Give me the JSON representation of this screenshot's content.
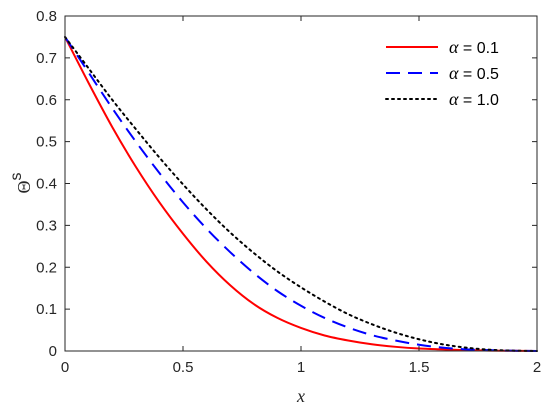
{
  "chart_data": {
    "type": "line",
    "title": "",
    "xlabel": "x",
    "ylabel": "Θ",
    "ylabel_superscript": "s",
    "xlim": [
      0,
      2
    ],
    "ylim": [
      0,
      0.8
    ],
    "xticks": [
      0,
      0.5,
      1,
      1.5,
      2
    ],
    "xtick_labels": [
      "0",
      "0.5",
      "1",
      "1.5",
      "2"
    ],
    "yticks": [
      0,
      0.1,
      0.2,
      0.3,
      0.4,
      0.5,
      0.6,
      0.7,
      0.8
    ],
    "ytick_labels": [
      "0",
      "0.1",
      "0.2",
      "0.3",
      "0.4",
      "0.5",
      "0.6",
      "0.7",
      "0.8"
    ],
    "grid": false,
    "legend_position": "top-right",
    "series": [
      {
        "name": "α = 0.1",
        "legend_symbol": "α",
        "legend_value": " = 0.1",
        "color": "#ff0000",
        "style": "solid",
        "x": [
          0,
          0.1,
          0.2,
          0.3,
          0.4,
          0.5,
          0.6,
          0.7,
          0.8,
          0.9,
          1.0,
          1.1,
          1.2,
          1.3,
          1.4,
          1.5,
          1.6,
          1.7,
          1.8,
          1.9,
          2.0
        ],
        "y": [
          0.75,
          0.64,
          0.535,
          0.44,
          0.355,
          0.28,
          0.213,
          0.157,
          0.112,
          0.079,
          0.055,
          0.037,
          0.025,
          0.016,
          0.01,
          0.006,
          0.004,
          0.002,
          0.001,
          0.0005,
          0.0
        ]
      },
      {
        "name": "α = 0.5",
        "legend_symbol": "α",
        "legend_value": " = 0.5",
        "color": "#0000ff",
        "style": "dashed",
        "x": [
          0,
          0.1,
          0.2,
          0.3,
          0.4,
          0.5,
          0.6,
          0.7,
          0.8,
          0.9,
          1.0,
          1.1,
          1.2,
          1.3,
          1.4,
          1.5,
          1.6,
          1.7,
          1.8,
          1.9,
          2.0
        ],
        "y": [
          0.75,
          0.665,
          0.58,
          0.5,
          0.425,
          0.355,
          0.292,
          0.236,
          0.186,
          0.143,
          0.108,
          0.079,
          0.056,
          0.038,
          0.025,
          0.015,
          0.008,
          0.004,
          0.002,
          0.0005,
          0.0
        ]
      },
      {
        "name": "α = 1.0",
        "legend_symbol": "α",
        "legend_value": " = 1.0",
        "color": "#000000",
        "style": "dotted",
        "x": [
          0,
          0.1,
          0.2,
          0.3,
          0.4,
          0.5,
          0.6,
          0.7,
          0.8,
          0.9,
          1.0,
          1.1,
          1.2,
          1.3,
          1.4,
          1.5,
          1.6,
          1.7,
          1.8,
          1.9,
          2.0
        ],
        "y": [
          0.75,
          0.675,
          0.6,
          0.53,
          0.462,
          0.398,
          0.338,
          0.283,
          0.234,
          0.19,
          0.152,
          0.118,
          0.088,
          0.064,
          0.044,
          0.028,
          0.016,
          0.008,
          0.003,
          0.0008,
          0.0
        ]
      }
    ]
  }
}
